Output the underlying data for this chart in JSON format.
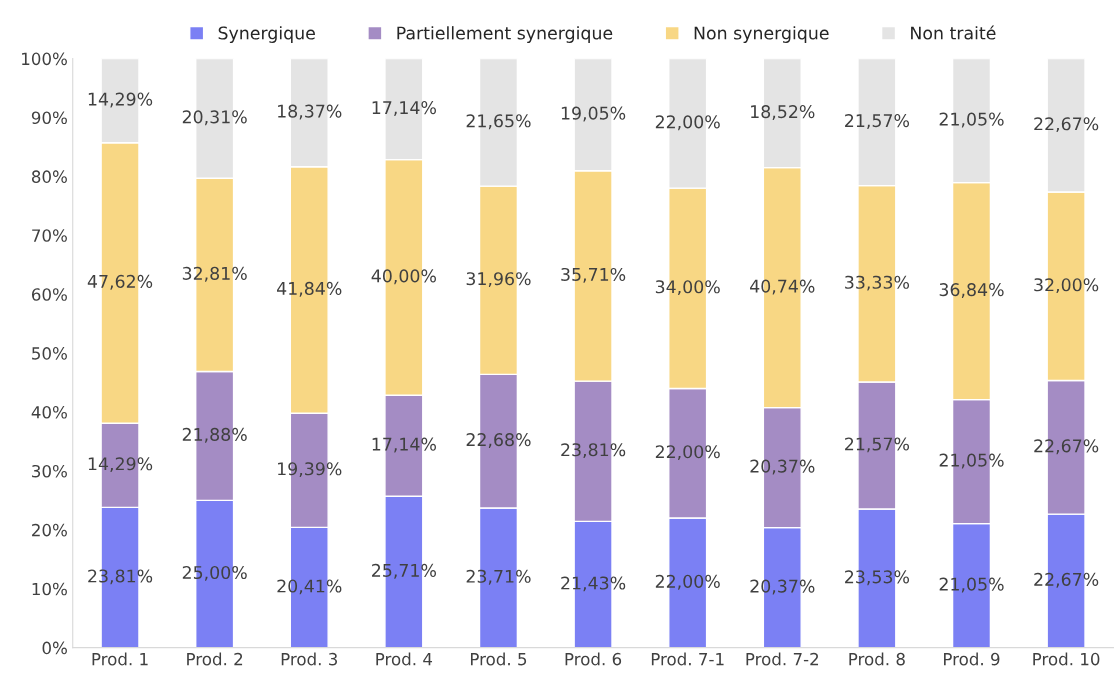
{
  "chart_data": {
    "type": "bar",
    "stacked": true,
    "categories": [
      "Prod. 1",
      "Prod. 2",
      "Prod. 3",
      "Prod. 4",
      "Prod. 5",
      "Prod. 6",
      "Prod. 7-1",
      "Prod. 7-2",
      "Prod. 8",
      "Prod. 9",
      "Prod. 10"
    ],
    "series": [
      {
        "name": "Synergique",
        "color": "#7b80f4",
        "values": [
          23.81,
          25.0,
          20.41,
          25.71,
          23.71,
          21.43,
          22.0,
          20.37,
          23.53,
          21.05,
          22.67
        ],
        "value_labels": [
          "23,81%",
          "25,00%",
          "20,41%",
          "25,71%",
          "23,71%",
          "21,43%",
          "22,00%",
          "20,37%",
          "23,53%",
          "21,05%",
          "22,67%"
        ]
      },
      {
        "name": "Partiellement synergique",
        "color": "#a48cc4",
        "values": [
          14.29,
          21.88,
          19.39,
          17.14,
          22.68,
          23.81,
          22.0,
          20.37,
          21.57,
          21.05,
          22.67
        ],
        "value_labels": [
          "14,29%",
          "21,88%",
          "19,39%",
          "17,14%",
          "22,68%",
          "23,81%",
          "22,00%",
          "20,37%",
          "21,57%",
          "21,05%",
          "22,67%"
        ]
      },
      {
        "name": "Non synergique",
        "color": "#f8d784",
        "values": [
          47.62,
          32.81,
          41.84,
          40.0,
          31.96,
          35.71,
          34.0,
          40.74,
          33.33,
          36.84,
          32.0
        ],
        "value_labels": [
          "47,62%",
          "32,81%",
          "41,84%",
          "40,00%",
          "31,96%",
          "35,71%",
          "34,00%",
          "40,74%",
          "33,33%",
          "36,84%",
          "32,00%"
        ]
      },
      {
        "name": "Non traité",
        "color": "#e4e4e4",
        "values": [
          14.29,
          20.31,
          18.37,
          17.14,
          21.65,
          19.05,
          22.0,
          18.52,
          21.57,
          21.05,
          22.67
        ],
        "value_labels": [
          "14,29%",
          "20,31%",
          "18,37%",
          "17,14%",
          "21,65%",
          "19,05%",
          "22,00%",
          "18,52%",
          "21,57%",
          "21,05%",
          "22,67%"
        ]
      }
    ],
    "ylim": [
      0,
      100
    ],
    "yticks": [
      {
        "value": 0,
        "label": "0%"
      },
      {
        "value": 10,
        "label": "10%"
      },
      {
        "value": 20,
        "label": "20%"
      },
      {
        "value": 30,
        "label": "30%"
      },
      {
        "value": 40,
        "label": "40%"
      },
      {
        "value": 50,
        "label": "50%"
      },
      {
        "value": 60,
        "label": "60%"
      },
      {
        "value": 70,
        "label": "70%"
      },
      {
        "value": 80,
        "label": "80%"
      },
      {
        "value": 90,
        "label": "90%"
      },
      {
        "value": 100,
        "label": "100%"
      }
    ],
    "grid": false,
    "legend": "top"
  }
}
